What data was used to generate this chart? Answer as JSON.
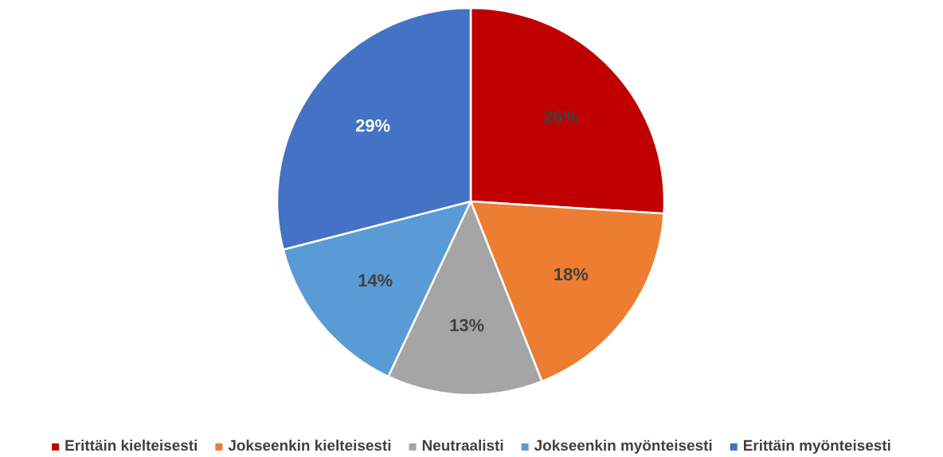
{
  "chart_data": {
    "type": "pie",
    "categories": [
      "Erittäin kielteisesti",
      "Jokseenkin kielteisesti",
      "Neutraalisti",
      "Jokseenkin myönteisesti",
      "Erittäin myönteisesti"
    ],
    "values": [
      26,
      18,
      13,
      14,
      29
    ],
    "colors": [
      "#c00000",
      "#ed7d31",
      "#a5a5a5",
      "#5b9bd5",
      "#4472c4"
    ],
    "value_labels": [
      "26%",
      "18%",
      "13%",
      "14%",
      "29%"
    ],
    "legend": "bottom"
  }
}
